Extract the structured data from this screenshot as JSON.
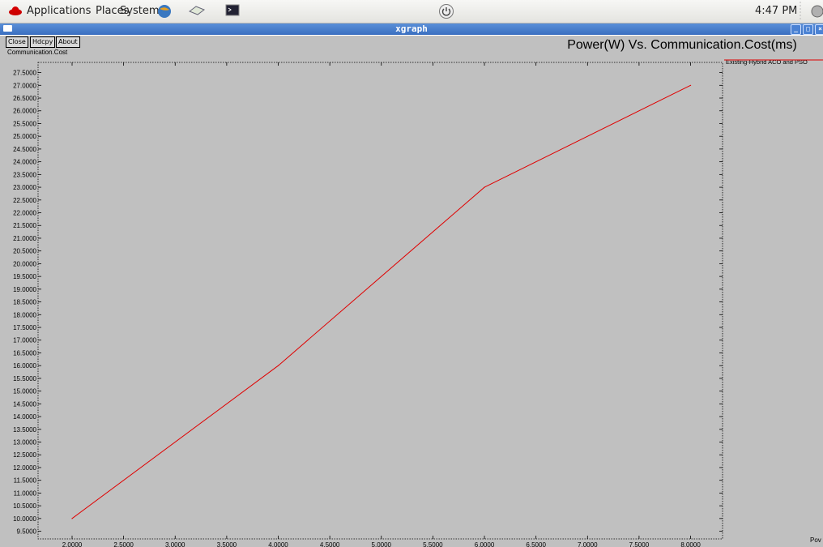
{
  "topbar": {
    "menus": [
      "Applications",
      "Places",
      "System"
    ],
    "clock": "4:47 PM"
  },
  "window": {
    "title": "xgraph"
  },
  "toolbar": {
    "close": "Close",
    "hdcpy": "Hdcpy",
    "about": "About"
  },
  "chart_data": {
    "type": "line",
    "title": "Power(W) Vs. Communication.Cost(ms)",
    "ylabel": "Communication.Cost",
    "xlabel": "Pov",
    "xlim": [
      1.67,
      8.31
    ],
    "ylim": [
      9.2,
      27.9
    ],
    "x_ticks": [
      "2.0000",
      "2.5000",
      "3.0000",
      "3.5000",
      "4.0000",
      "4.5000",
      "5.0000",
      "5.5000",
      "6.0000",
      "6.5000",
      "7.0000",
      "7.5000",
      "8.0000"
    ],
    "y_ticks": [
      "9.5000",
      "10.0000",
      "10.5000",
      "11.0000",
      "11.5000",
      "12.0000",
      "12.5000",
      "13.0000",
      "13.5000",
      "14.0000",
      "14.5000",
      "15.0000",
      "15.5000",
      "16.0000",
      "16.5000",
      "17.0000",
      "17.5000",
      "18.0000",
      "18.5000",
      "19.0000",
      "19.5000",
      "20.0000",
      "20.5000",
      "21.0000",
      "21.5000",
      "22.0000",
      "22.5000",
      "23.0000",
      "23.5000",
      "24.0000",
      "24.5000",
      "25.0000",
      "25.5000",
      "26.0000",
      "26.5000",
      "27.0000",
      "27.5000"
    ],
    "series": [
      {
        "name": "Existing-Hybrid ACO and PSO",
        "color": "#e00000",
        "x": [
          2,
          4,
          6,
          8
        ],
        "y": [
          10,
          16,
          23,
          27
        ]
      }
    ],
    "legend": "right",
    "grid": false
  }
}
